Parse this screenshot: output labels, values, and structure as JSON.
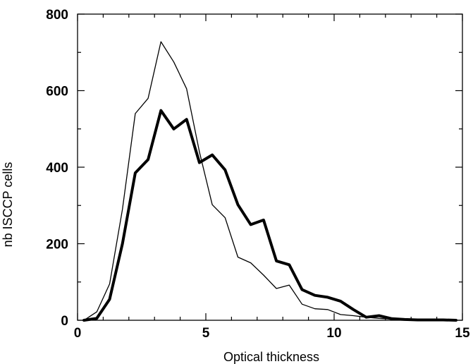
{
  "chart_data": {
    "type": "line",
    "title": "",
    "xlabel": "Optical thickness",
    "ylabel": "nb ISCCP cells",
    "xlim": [
      0,
      15
    ],
    "ylim": [
      0,
      800
    ],
    "x_ticks": [
      0,
      5,
      10,
      15
    ],
    "y_ticks": [
      0,
      200,
      400,
      600,
      800
    ],
    "x_tick_labels": [
      "0",
      "5",
      "10",
      "15"
    ],
    "y_tick_labels": [
      "0",
      "200",
      "400",
      "600",
      "800"
    ],
    "grid": false,
    "legend": "none",
    "series": [
      {
        "style": "thin",
        "color": "#000000",
        "x": [
          0.25,
          0.75,
          1.25,
          1.75,
          2.25,
          2.75,
          3.25,
          3.75,
          4.25,
          4.75,
          5.25,
          5.75,
          6.25,
          6.75,
          7.25,
          7.75,
          8.25,
          8.75,
          9.25,
          9.75,
          10.25,
          10.75,
          11.25,
          11.75,
          12.25,
          12.75,
          13.25,
          13.75,
          14.25,
          14.75
        ],
        "values": [
          0,
          22,
          95,
          290,
          540,
          580,
          728,
          675,
          605,
          440,
          302,
          268,
          165,
          150,
          118,
          83,
          92,
          42,
          30,
          28,
          15,
          12,
          8,
          5,
          3,
          2,
          1,
          1,
          1,
          0
        ]
      },
      {
        "style": "thick",
        "color": "#000000",
        "x": [
          0.25,
          0.75,
          1.25,
          1.75,
          2.25,
          2.75,
          3.25,
          3.75,
          4.25,
          4.75,
          5.25,
          5.75,
          6.25,
          6.75,
          7.25,
          7.75,
          8.25,
          8.75,
          9.25,
          9.75,
          10.25,
          10.75,
          11.25,
          11.75,
          12.25,
          12.75,
          13.25,
          13.75,
          14.25,
          14.75
        ],
        "values": [
          0,
          5,
          55,
          200,
          385,
          420,
          548,
          500,
          525,
          412,
          432,
          393,
          302,
          250,
          262,
          155,
          145,
          80,
          65,
          60,
          50,
          28,
          8,
          12,
          4,
          2,
          1,
          1,
          1,
          0
        ]
      }
    ]
  }
}
